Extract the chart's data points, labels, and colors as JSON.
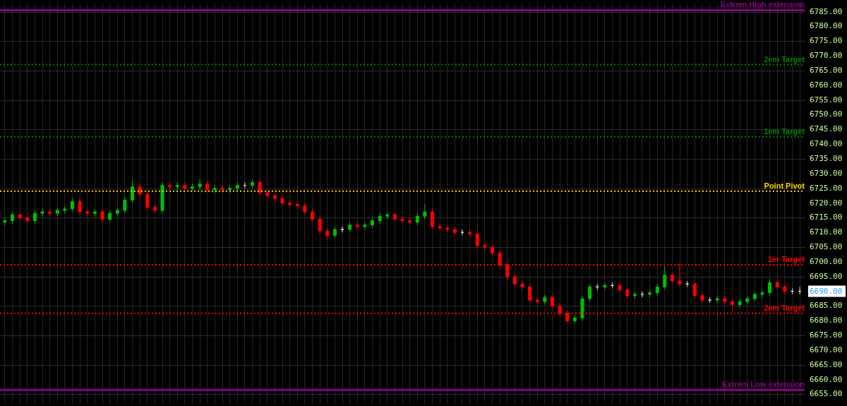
{
  "chart_data": {
    "type": "candlestick",
    "categories": [
      null,
      null,
      null,
      null,
      null,
      null,
      null,
      null,
      null,
      null,
      null,
      null,
      null,
      null,
      null,
      null,
      null,
      null,
      null,
      null,
      null,
      null,
      null,
      null,
      null,
      null,
      null,
      null,
      null,
      null,
      null,
      null,
      null,
      null,
      null,
      null,
      null,
      null,
      null,
      null,
      null,
      null,
      null,
      null,
      null,
      null,
      null,
      null,
      null,
      null,
      null,
      null,
      null,
      null,
      null,
      null,
      null,
      null,
      null,
      null,
      null,
      null,
      null,
      null,
      null,
      null,
      null,
      null,
      null,
      null,
      null,
      null,
      null,
      null,
      null,
      null,
      null,
      null,
      null,
      null,
      null,
      null,
      null,
      null,
      null,
      null,
      null,
      null,
      null,
      null,
      null,
      null,
      null,
      null,
      null,
      null,
      null,
      null,
      null,
      null,
      null,
      null,
      null,
      null,
      null,
      null,
      null
    ],
    "ohlc": [
      [
        6713.5,
        6715,
        6712.5,
        6714
      ],
      [
        6714,
        6717,
        6713,
        6716
      ],
      [
        6716,
        6717,
        6714,
        6715
      ],
      [
        6715,
        6716,
        6713,
        6714
      ],
      [
        6714,
        6717.5,
        6713,
        6716.5
      ],
      [
        6716.5,
        6718,
        6715.5,
        6717
      ],
      [
        6717,
        6718,
        6715.5,
        6716.5
      ],
      [
        6716.5,
        6718.5,
        6715.5,
        6717.5
      ],
      [
        6717.5,
        6719,
        6716.5,
        6718
      ],
      [
        6718,
        6721.5,
        6717,
        6720.5
      ],
      [
        6720.5,
        6721.5,
        6716,
        6717
      ],
      [
        6717,
        6718,
        6715.5,
        6716.5
      ],
      [
        6716.5,
        6718,
        6715.5,
        6717
      ],
      [
        6717,
        6718,
        6713.5,
        6714.5
      ],
      [
        6714.5,
        6717.5,
        6713.5,
        6716.5
      ],
      [
        6716.5,
        6718.5,
        6715.5,
        6717.5
      ],
      [
        6717.5,
        6722,
        6716.5,
        6721
      ],
      [
        6721,
        6728,
        6720,
        6725.5
      ],
      [
        6725.5,
        6726.5,
        6722,
        6723
      ],
      [
        6723,
        6724,
        6717.5,
        6718.5
      ],
      [
        6718.5,
        6719.5,
        6716.5,
        6717.5
      ],
      [
        6717.5,
        6727,
        6716.5,
        6726
      ],
      [
        6726,
        6727,
        6724.5,
        6725.5
      ],
      [
        6725.5,
        6727,
        6724.5,
        6726
      ],
      [
        6726,
        6727,
        6724,
        6725
      ],
      [
        6725,
        6726.5,
        6724,
        6725.5
      ],
      [
        6725.5,
        6728,
        6724.5,
        6726.5
      ],
      [
        6726.5,
        6727.5,
        6723.5,
        6724.5
      ],
      [
        6724.5,
        6726,
        6723.5,
        6725
      ],
      [
        6725,
        6726,
        6723.5,
        6724.5
      ],
      [
        6724.5,
        6726,
        6723.5,
        6725
      ],
      [
        6725,
        6727,
        6724,
        6726
      ],
      [
        6726,
        6727,
        6725,
        6726
      ],
      [
        6726,
        6728,
        6725,
        6727
      ],
      [
        6727,
        6728,
        6722.5,
        6723.5
      ],
      [
        6723.5,
        6724.5,
        6721.5,
        6722.5
      ],
      [
        6722.5,
        6723.5,
        6720.5,
        6721.5
      ],
      [
        6721.5,
        6722.5,
        6719,
        6720
      ],
      [
        6720,
        6721,
        6718.5,
        6719.5
      ],
      [
        6719.5,
        6720.5,
        6718,
        6719
      ],
      [
        6719,
        6720,
        6716,
        6717
      ],
      [
        6717,
        6718,
        6713.5,
        6714.5
      ],
      [
        6714.5,
        6715.5,
        6709.5,
        6710.5
      ],
      [
        6710.5,
        6711.5,
        6707.5,
        6709
      ],
      [
        6709,
        6712,
        6708,
        6711
      ],
      [
        6711,
        6712,
        6710,
        6711
      ],
      [
        6711,
        6713.5,
        6710,
        6712.5
      ],
      [
        6712.5,
        6713.5,
        6711,
        6712
      ],
      [
        6712,
        6713.5,
        6711,
        6712.5
      ],
      [
        6712.5,
        6715,
        6711.5,
        6714
      ],
      [
        6714,
        6716.5,
        6713,
        6715.5
      ],
      [
        6715.5,
        6717,
        6714.5,
        6716
      ],
      [
        6716,
        6717,
        6713.5,
        6714.5
      ],
      [
        6714.5,
        6715.5,
        6713,
        6714
      ],
      [
        6714,
        6715,
        6712.5,
        6713.5
      ],
      [
        6713.5,
        6716.5,
        6712.5,
        6715.5
      ],
      [
        6715.5,
        6719.5,
        6714.5,
        6717
      ],
      [
        6717,
        6718,
        6711,
        6712
      ],
      [
        6712,
        6713,
        6710.5,
        6711.5
      ],
      [
        6711.5,
        6712.5,
        6710,
        6711
      ],
      [
        6711,
        6712,
        6709,
        6710
      ],
      [
        6710,
        6711,
        6709,
        6710
      ],
      [
        6710,
        6711,
        6708.5,
        6709.5
      ],
      [
        6709.5,
        6710.5,
        6704.5,
        6705.5
      ],
      [
        6705.5,
        6706.5,
        6704,
        6705
      ],
      [
        6705,
        6706,
        6702,
        6703
      ],
      [
        6703,
        6704,
        6698,
        6699
      ],
      [
        6699,
        6700,
        6694,
        6695
      ],
      [
        6695,
        6696,
        6691.5,
        6692.5
      ],
      [
        6692.5,
        6693.5,
        6690.5,
        6691.5
      ],
      [
        6691.5,
        6692.5,
        6686,
        6687
      ],
      [
        6687,
        6688,
        6685.5,
        6686.5
      ],
      [
        6686.5,
        6689,
        6685.5,
        6688
      ],
      [
        6688,
        6689,
        6684,
        6685
      ],
      [
        6685,
        6686,
        6681.5,
        6682.5
      ],
      [
        6682.5,
        6683.5,
        6679,
        6680
      ],
      [
        6680,
        6682,
        6679,
        6681
      ],
      [
        6681,
        6688.5,
        6680,
        6687.5
      ],
      [
        6687.5,
        6692.5,
        6686.5,
        6691.5
      ],
      [
        6691.5,
        6692.5,
        6690.5,
        6691.5
      ],
      [
        6691.5,
        6693,
        6690.5,
        6692
      ],
      [
        6692,
        6693,
        6691,
        6692
      ],
      [
        6692,
        6693,
        6689.5,
        6690.5
      ],
      [
        6690.5,
        6691.5,
        6687.5,
        6688.5
      ],
      [
        6688.5,
        6690,
        6687.5,
        6689
      ],
      [
        6689,
        6690,
        6688,
        6689
      ],
      [
        6689,
        6690.5,
        6688,
        6689.5
      ],
      [
        6689.5,
        6692.5,
        6688.5,
        6691.5
      ],
      [
        6691.5,
        6698.5,
        6690.5,
        6695.5
      ],
      [
        6695.5,
        6696.5,
        6692.5,
        6693.5
      ],
      [
        6693.5,
        6699.5,
        6691.5,
        6692.5
      ],
      [
        6692.5,
        6693.5,
        6691.5,
        6692.5
      ],
      [
        6692.5,
        6693.5,
        6687.5,
        6688.5
      ],
      [
        6688.5,
        6689.5,
        6686,
        6687
      ],
      [
        6687,
        6688,
        6686,
        6687
      ],
      [
        6687,
        6688.5,
        6686,
        6687.5
      ],
      [
        6687.5,
        6688.5,
        6685.5,
        6686.5
      ],
      [
        6686.5,
        6687.5,
        6683,
        6685.5
      ],
      [
        6685.5,
        6687.5,
        6684.5,
        6686.5
      ],
      [
        6686.5,
        6688.5,
        6685.5,
        6687.5
      ],
      [
        6687.5,
        6690,
        6686.5,
        6689
      ],
      [
        6689,
        6690.5,
        6688,
        6689.5
      ],
      [
        6689.5,
        6694,
        6688.5,
        6693
      ],
      [
        6693,
        6694,
        6690.5,
        6691.5
      ],
      [
        6691.5,
        6692.5,
        6689,
        6690
      ],
      [
        6690,
        6691,
        6689,
        6690
      ],
      [
        6690,
        6691.5,
        6689,
        6690
      ]
    ],
    "colors": [
      "#00c000",
      "#00c000",
      "#ff0000",
      "#ff0000",
      "#00c000",
      "#00c000",
      "#ff0000",
      "#00c000",
      "#00c000",
      "#00c000",
      "#ff0000",
      "#ff0000",
      "#00c000",
      "#ff0000",
      "#00c000",
      "#00c000",
      "#00c000",
      "#00c000",
      "#ff0000",
      "#ff0000",
      "#ff0000",
      "#00c000",
      "#ff0000",
      "#00c000",
      "#ff0000",
      "#00c000",
      "#00c000",
      "#ff0000",
      "#00c000",
      "#ff0000",
      "#00c000",
      "#00c000",
      "#e0e0e0",
      "#00c000",
      "#ff0000",
      "#ff0000",
      "#ff0000",
      "#ff0000",
      "#ff0000",
      "#ff0000",
      "#ff0000",
      "#ff0000",
      "#ff0000",
      "#ff0000",
      "#00c000",
      "#e0e0e0",
      "#00c000",
      "#ff0000",
      "#00c000",
      "#00c000",
      "#00c000",
      "#00c000",
      "#ff0000",
      "#ff0000",
      "#ff0000",
      "#00c000",
      "#00c000",
      "#ff0000",
      "#ff0000",
      "#ff0000",
      "#ff0000",
      "#e0e0e0",
      "#ff0000",
      "#ff0000",
      "#ff0000",
      "#ff0000",
      "#ff0000",
      "#ff0000",
      "#ff0000",
      "#ff0000",
      "#ff0000",
      "#ff0000",
      "#00c000",
      "#ff0000",
      "#ff0000",
      "#ff0000",
      "#00c000",
      "#00c000",
      "#00c000",
      "#e0e0e0",
      "#00c000",
      "#e0e0e0",
      "#ff0000",
      "#ff0000",
      "#00c000",
      "#e0e0e0",
      "#00c000",
      "#00c000",
      "#00c000",
      "#ff0000",
      "#ff0000",
      "#e0e0e0",
      "#ff0000",
      "#ff0000",
      "#e0e0e0",
      "#00c000",
      "#ff0000",
      "#ff0000",
      "#00c000",
      "#00c000",
      "#00c000",
      "#00c000",
      "#00c000",
      "#ff0000",
      "#ff0000",
      "#e0e0e0",
      "#e0e0e0"
    ],
    "ylim": [
      6652,
      6788
    ],
    "yticks": [
      {
        "value": 6655,
        "label": "6655.00"
      },
      {
        "value": 6660,
        "label": "6660.00"
      },
      {
        "value": 6665,
        "label": "6665.00"
      },
      {
        "value": 6670,
        "label": "6670.00"
      },
      {
        "value": 6675,
        "label": "6675.00"
      },
      {
        "value": 6680,
        "label": "6680.00"
      },
      {
        "value": 6685,
        "label": "6685.00"
      },
      {
        "value": 6690,
        "label": "6690.00"
      },
      {
        "value": 6695,
        "label": "6695.00"
      },
      {
        "value": 6700,
        "label": "6700.00"
      },
      {
        "value": 6705,
        "label": "6705.00"
      },
      {
        "value": 6710,
        "label": "6710.00"
      },
      {
        "value": 6715,
        "label": "6715.00"
      },
      {
        "value": 6720,
        "label": "6720.00"
      },
      {
        "value": 6725,
        "label": "6725.00"
      },
      {
        "value": 6730,
        "label": "6730.00"
      },
      {
        "value": 6735,
        "label": "6735.00"
      },
      {
        "value": 6740,
        "label": "6740.00"
      },
      {
        "value": 6745,
        "label": "6745.00"
      },
      {
        "value": 6750,
        "label": "6750.00"
      },
      {
        "value": 6755,
        "label": "6755.00"
      },
      {
        "value": 6760,
        "label": "6760.00"
      },
      {
        "value": 6765,
        "label": "6765.00"
      },
      {
        "value": 6770,
        "label": "6770.00"
      },
      {
        "value": 6775,
        "label": "6775.00"
      },
      {
        "value": 6780,
        "label": "6780.00"
      },
      {
        "value": 6785,
        "label": "6785.00"
      }
    ],
    "ref_lines": [
      {
        "axis": "y",
        "value": 6785.5,
        "label": "Extrem High extension",
        "color": "#8b008b",
        "line_style": "solid"
      },
      {
        "axis": "y",
        "value": 6767,
        "label": "2em Target",
        "color": "#008000",
        "line_style": "dotted"
      },
      {
        "axis": "y",
        "value": 6742.5,
        "label": "1em Target",
        "color": "#008000",
        "line_style": "dotted"
      },
      {
        "axis": "y",
        "value": 6724,
        "label": "Point Pivot",
        "color": "#ffd700",
        "line_style": "dotted"
      },
      {
        "axis": "y",
        "value": 6699,
        "label": "1er Target",
        "color": "#ff0000",
        "line_style": "dotted"
      },
      {
        "axis": "y",
        "value": 6682.5,
        "label": "2em Target",
        "color": "#ff0000",
        "line_style": "dotted"
      },
      {
        "axis": "y",
        "value": 6656.5,
        "label": "Extrem Low extension",
        "color": "#8b008b",
        "line_style": "solid"
      }
    ],
    "grid": true
  }
}
